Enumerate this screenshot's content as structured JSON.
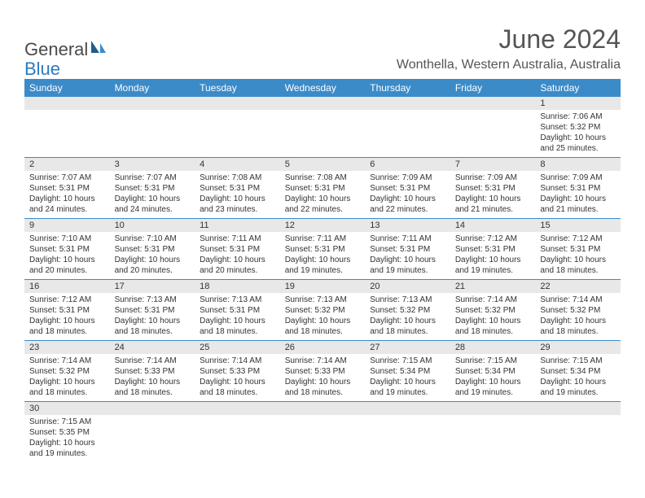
{
  "logo": {
    "text1": "General",
    "text2": "Blue"
  },
  "title": "June 2024",
  "location": "Wonthella, Western Australia, Australia",
  "colors": {
    "header_bg": "#3b8bc9",
    "header_text": "#ffffff",
    "daynum_bg": "#e8e8e8",
    "border": "#3b8bc9",
    "text": "#333333",
    "title_text": "#555555"
  },
  "weekdays": [
    "Sunday",
    "Monday",
    "Tuesday",
    "Wednesday",
    "Thursday",
    "Friday",
    "Saturday"
  ],
  "weeks": [
    [
      {
        "n": "",
        "lines": []
      },
      {
        "n": "",
        "lines": []
      },
      {
        "n": "",
        "lines": []
      },
      {
        "n": "",
        "lines": []
      },
      {
        "n": "",
        "lines": []
      },
      {
        "n": "",
        "lines": []
      },
      {
        "n": "1",
        "lines": [
          "Sunrise: 7:06 AM",
          "Sunset: 5:32 PM",
          "Daylight: 10 hours",
          "and 25 minutes."
        ]
      }
    ],
    [
      {
        "n": "2",
        "lines": [
          "Sunrise: 7:07 AM",
          "Sunset: 5:31 PM",
          "Daylight: 10 hours",
          "and 24 minutes."
        ]
      },
      {
        "n": "3",
        "lines": [
          "Sunrise: 7:07 AM",
          "Sunset: 5:31 PM",
          "Daylight: 10 hours",
          "and 24 minutes."
        ]
      },
      {
        "n": "4",
        "lines": [
          "Sunrise: 7:08 AM",
          "Sunset: 5:31 PM",
          "Daylight: 10 hours",
          "and 23 minutes."
        ]
      },
      {
        "n": "5",
        "lines": [
          "Sunrise: 7:08 AM",
          "Sunset: 5:31 PM",
          "Daylight: 10 hours",
          "and 22 minutes."
        ]
      },
      {
        "n": "6",
        "lines": [
          "Sunrise: 7:09 AM",
          "Sunset: 5:31 PM",
          "Daylight: 10 hours",
          "and 22 minutes."
        ]
      },
      {
        "n": "7",
        "lines": [
          "Sunrise: 7:09 AM",
          "Sunset: 5:31 PM",
          "Daylight: 10 hours",
          "and 21 minutes."
        ]
      },
      {
        "n": "8",
        "lines": [
          "Sunrise: 7:09 AM",
          "Sunset: 5:31 PM",
          "Daylight: 10 hours",
          "and 21 minutes."
        ]
      }
    ],
    [
      {
        "n": "9",
        "lines": [
          "Sunrise: 7:10 AM",
          "Sunset: 5:31 PM",
          "Daylight: 10 hours",
          "and 20 minutes."
        ]
      },
      {
        "n": "10",
        "lines": [
          "Sunrise: 7:10 AM",
          "Sunset: 5:31 PM",
          "Daylight: 10 hours",
          "and 20 minutes."
        ]
      },
      {
        "n": "11",
        "lines": [
          "Sunrise: 7:11 AM",
          "Sunset: 5:31 PM",
          "Daylight: 10 hours",
          "and 20 minutes."
        ]
      },
      {
        "n": "12",
        "lines": [
          "Sunrise: 7:11 AM",
          "Sunset: 5:31 PM",
          "Daylight: 10 hours",
          "and 19 minutes."
        ]
      },
      {
        "n": "13",
        "lines": [
          "Sunrise: 7:11 AM",
          "Sunset: 5:31 PM",
          "Daylight: 10 hours",
          "and 19 minutes."
        ]
      },
      {
        "n": "14",
        "lines": [
          "Sunrise: 7:12 AM",
          "Sunset: 5:31 PM",
          "Daylight: 10 hours",
          "and 19 minutes."
        ]
      },
      {
        "n": "15",
        "lines": [
          "Sunrise: 7:12 AM",
          "Sunset: 5:31 PM",
          "Daylight: 10 hours",
          "and 18 minutes."
        ]
      }
    ],
    [
      {
        "n": "16",
        "lines": [
          "Sunrise: 7:12 AM",
          "Sunset: 5:31 PM",
          "Daylight: 10 hours",
          "and 18 minutes."
        ]
      },
      {
        "n": "17",
        "lines": [
          "Sunrise: 7:13 AM",
          "Sunset: 5:31 PM",
          "Daylight: 10 hours",
          "and 18 minutes."
        ]
      },
      {
        "n": "18",
        "lines": [
          "Sunrise: 7:13 AM",
          "Sunset: 5:31 PM",
          "Daylight: 10 hours",
          "and 18 minutes."
        ]
      },
      {
        "n": "19",
        "lines": [
          "Sunrise: 7:13 AM",
          "Sunset: 5:32 PM",
          "Daylight: 10 hours",
          "and 18 minutes."
        ]
      },
      {
        "n": "20",
        "lines": [
          "Sunrise: 7:13 AM",
          "Sunset: 5:32 PM",
          "Daylight: 10 hours",
          "and 18 minutes."
        ]
      },
      {
        "n": "21",
        "lines": [
          "Sunrise: 7:14 AM",
          "Sunset: 5:32 PM",
          "Daylight: 10 hours",
          "and 18 minutes."
        ]
      },
      {
        "n": "22",
        "lines": [
          "Sunrise: 7:14 AM",
          "Sunset: 5:32 PM",
          "Daylight: 10 hours",
          "and 18 minutes."
        ]
      }
    ],
    [
      {
        "n": "23",
        "lines": [
          "Sunrise: 7:14 AM",
          "Sunset: 5:32 PM",
          "Daylight: 10 hours",
          "and 18 minutes."
        ]
      },
      {
        "n": "24",
        "lines": [
          "Sunrise: 7:14 AM",
          "Sunset: 5:33 PM",
          "Daylight: 10 hours",
          "and 18 minutes."
        ]
      },
      {
        "n": "25",
        "lines": [
          "Sunrise: 7:14 AM",
          "Sunset: 5:33 PM",
          "Daylight: 10 hours",
          "and 18 minutes."
        ]
      },
      {
        "n": "26",
        "lines": [
          "Sunrise: 7:14 AM",
          "Sunset: 5:33 PM",
          "Daylight: 10 hours",
          "and 18 minutes."
        ]
      },
      {
        "n": "27",
        "lines": [
          "Sunrise: 7:15 AM",
          "Sunset: 5:34 PM",
          "Daylight: 10 hours",
          "and 19 minutes."
        ]
      },
      {
        "n": "28",
        "lines": [
          "Sunrise: 7:15 AM",
          "Sunset: 5:34 PM",
          "Daylight: 10 hours",
          "and 19 minutes."
        ]
      },
      {
        "n": "29",
        "lines": [
          "Sunrise: 7:15 AM",
          "Sunset: 5:34 PM",
          "Daylight: 10 hours",
          "and 19 minutes."
        ]
      }
    ],
    [
      {
        "n": "30",
        "lines": [
          "Sunrise: 7:15 AM",
          "Sunset: 5:35 PM",
          "Daylight: 10 hours",
          "and 19 minutes."
        ]
      },
      {
        "n": "",
        "lines": []
      },
      {
        "n": "",
        "lines": []
      },
      {
        "n": "",
        "lines": []
      },
      {
        "n": "",
        "lines": []
      },
      {
        "n": "",
        "lines": []
      },
      {
        "n": "",
        "lines": []
      }
    ]
  ]
}
